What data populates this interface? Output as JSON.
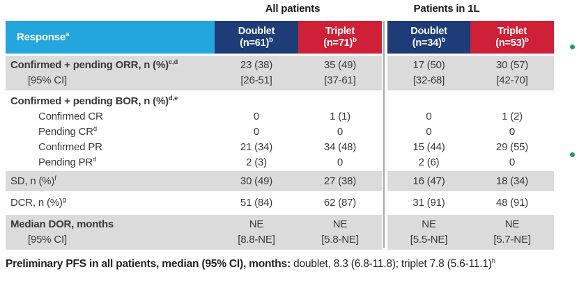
{
  "colors": {
    "header_cyan": "#23A5DE",
    "header_navy": "#1E3C78",
    "header_red": "#CE2037",
    "row_gray": "#DBDBDB",
    "divider_gray": "#A5A7A9",
    "bullet_green": "#279B62"
  },
  "table": {
    "group_headers": [
      {
        "label": "All patients"
      },
      {
        "label": "Patients in 1L"
      }
    ],
    "header": {
      "response_label": "Response",
      "response_sup": "a",
      "columns": [
        {
          "label": "Doublet",
          "n": "(n=61)",
          "sup": "b"
        },
        {
          "label": "Triplet",
          "n": "(n=71)",
          "sup": "b"
        },
        {
          "label": "Doublet",
          "n": "(n=34)",
          "sup": "b"
        },
        {
          "label": "Triplet",
          "n": "(n=53)",
          "sup": "b"
        }
      ]
    },
    "rows": {
      "orr": {
        "label": "Confirmed + pending ORR, n (%)",
        "sup": "c,d",
        "sub_label": "[95% CI]",
        "values": [
          "23 (38)",
          "35 (49)",
          "17 (50)",
          "30 (57)"
        ],
        "ci": [
          "[26-51]",
          "[37-61]",
          "[32-68]",
          "[42-70]"
        ]
      },
      "bor": {
        "label": "Confirmed + pending BOR, n (%)",
        "sup": "d,e",
        "items": [
          {
            "label": "Confirmed CR",
            "sup": "",
            "values": [
              "0",
              "1 (1)",
              "0",
              "1 (2)"
            ]
          },
          {
            "label": "Pending CR",
            "sup": "d",
            "values": [
              "0",
              "0",
              "0",
              "0"
            ]
          },
          {
            "label": "Confirmed PR",
            "sup": "",
            "values": [
              "21 (34)",
              "34 (48)",
              "15 (44)",
              "29 (55)"
            ]
          },
          {
            "label": "Pending PR",
            "sup": "d",
            "values": [
              "2 (3)",
              "0",
              "2 (6)",
              "0"
            ]
          }
        ]
      },
      "sd": {
        "label": "SD, n (%)",
        "sup": "f",
        "values": [
          "30 (49)",
          "27 (38)",
          "16 (47)",
          "18 (34)"
        ]
      },
      "dcr": {
        "label": "DCR, n (%)",
        "sup": "g",
        "values": [
          "51 (84)",
          "62 (87)",
          "31 (91)",
          "48 (91)"
        ]
      },
      "dor": {
        "label": "Median DOR, months",
        "sub_label": "[95% CI]",
        "values": [
          "NE",
          "NE",
          "NE",
          "NE"
        ],
        "ci": [
          "[8.8-NE]",
          "[5.8-NE]",
          "[5.5-NE]",
          "[5.7-NE]"
        ]
      }
    }
  },
  "footer": {
    "bold": "Preliminary PFS in all patients, median (95% CI), months:",
    "regular": " doublet, 8.3 (6.8-11.8); triplet 7.8 (5.6-11.1)",
    "sup": "h"
  }
}
